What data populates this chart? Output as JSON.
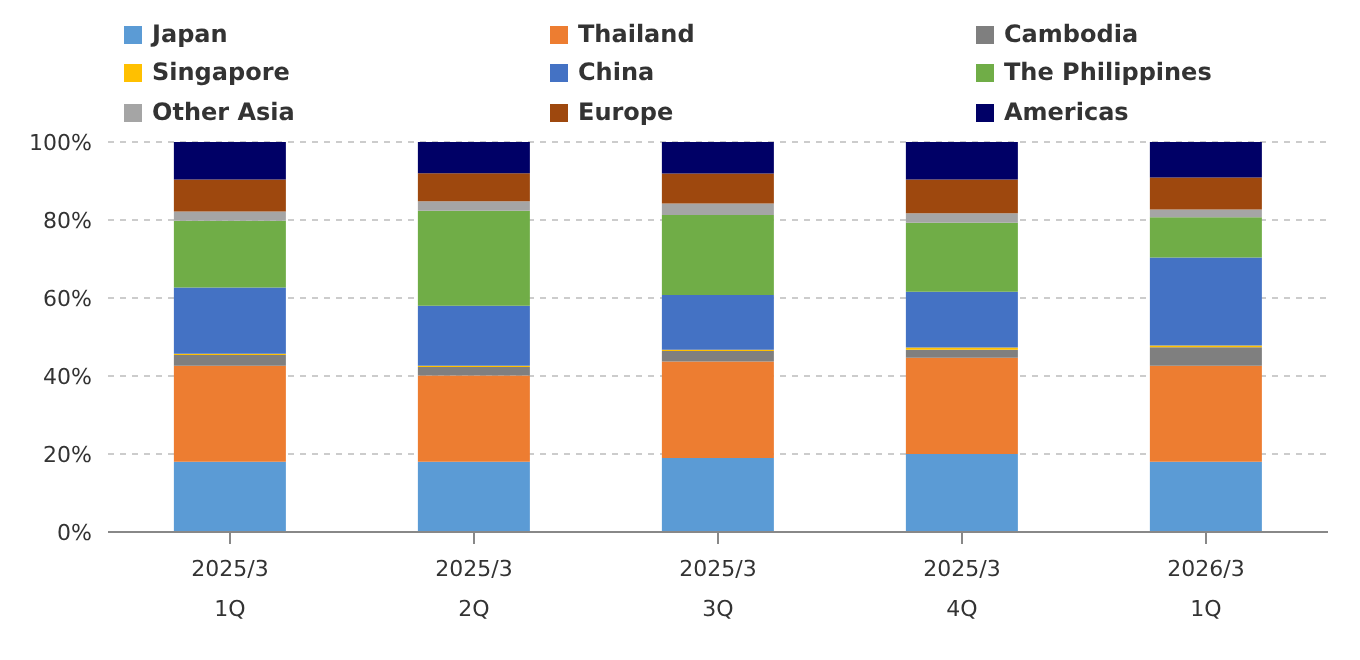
{
  "chart_data": {
    "type": "bar",
    "stacked": true,
    "categories": [
      "2025/3\n1Q",
      "2025/3\n2Q",
      "2025/3\n3Q",
      "2025/3\n4Q",
      "2026/3\n1Q"
    ],
    "series": [
      {
        "name": "Japan",
        "color": "#5b9bd5",
        "values": [
          18.0,
          18.0,
          19.0,
          20.0,
          18.0
        ]
      },
      {
        "name": "Thailand",
        "color": "#ed7d31",
        "values": [
          24.6,
          22.1,
          24.7,
          24.7,
          24.6
        ]
      },
      {
        "name": "Cambodia",
        "color": "#7f7f7f",
        "values": [
          2.8,
          2.2,
          2.7,
          2.0,
          4.8
        ]
      },
      {
        "name": "Singapore",
        "color": "#ffc000",
        "values": [
          0.3,
          0.3,
          0.3,
          0.6,
          0.4
        ]
      },
      {
        "name": "China",
        "color": "#4472c4",
        "values": [
          17.0,
          15.4,
          14.1,
          14.3,
          22.6
        ]
      },
      {
        "name": "The Philippines",
        "color": "#70ad47",
        "values": [
          17.1,
          24.4,
          20.5,
          17.7,
          10.3
        ]
      },
      {
        "name": "Other Asia",
        "color": "#a5a5a5",
        "values": [
          2.4,
          2.4,
          2.9,
          2.4,
          2.0
        ]
      },
      {
        "name": "Europe",
        "color": "#9e480e",
        "values": [
          8.2,
          7.2,
          7.7,
          8.7,
          8.2
        ]
      },
      {
        "name": "Americas",
        "color": "#000066",
        "values": [
          9.6,
          8.0,
          8.1,
          9.6,
          9.1
        ]
      }
    ],
    "ylim": [
      0,
      100
    ],
    "yticks": [
      {
        "value": 0,
        "label": "0%"
      },
      {
        "value": 20,
        "label": "20%"
      },
      {
        "value": 40,
        "label": "40%"
      },
      {
        "value": 60,
        "label": "60%"
      },
      {
        "value": 80,
        "label": "80%"
      },
      {
        "value": 100,
        "label": "100%"
      }
    ],
    "grid": "y",
    "legend": "top"
  }
}
